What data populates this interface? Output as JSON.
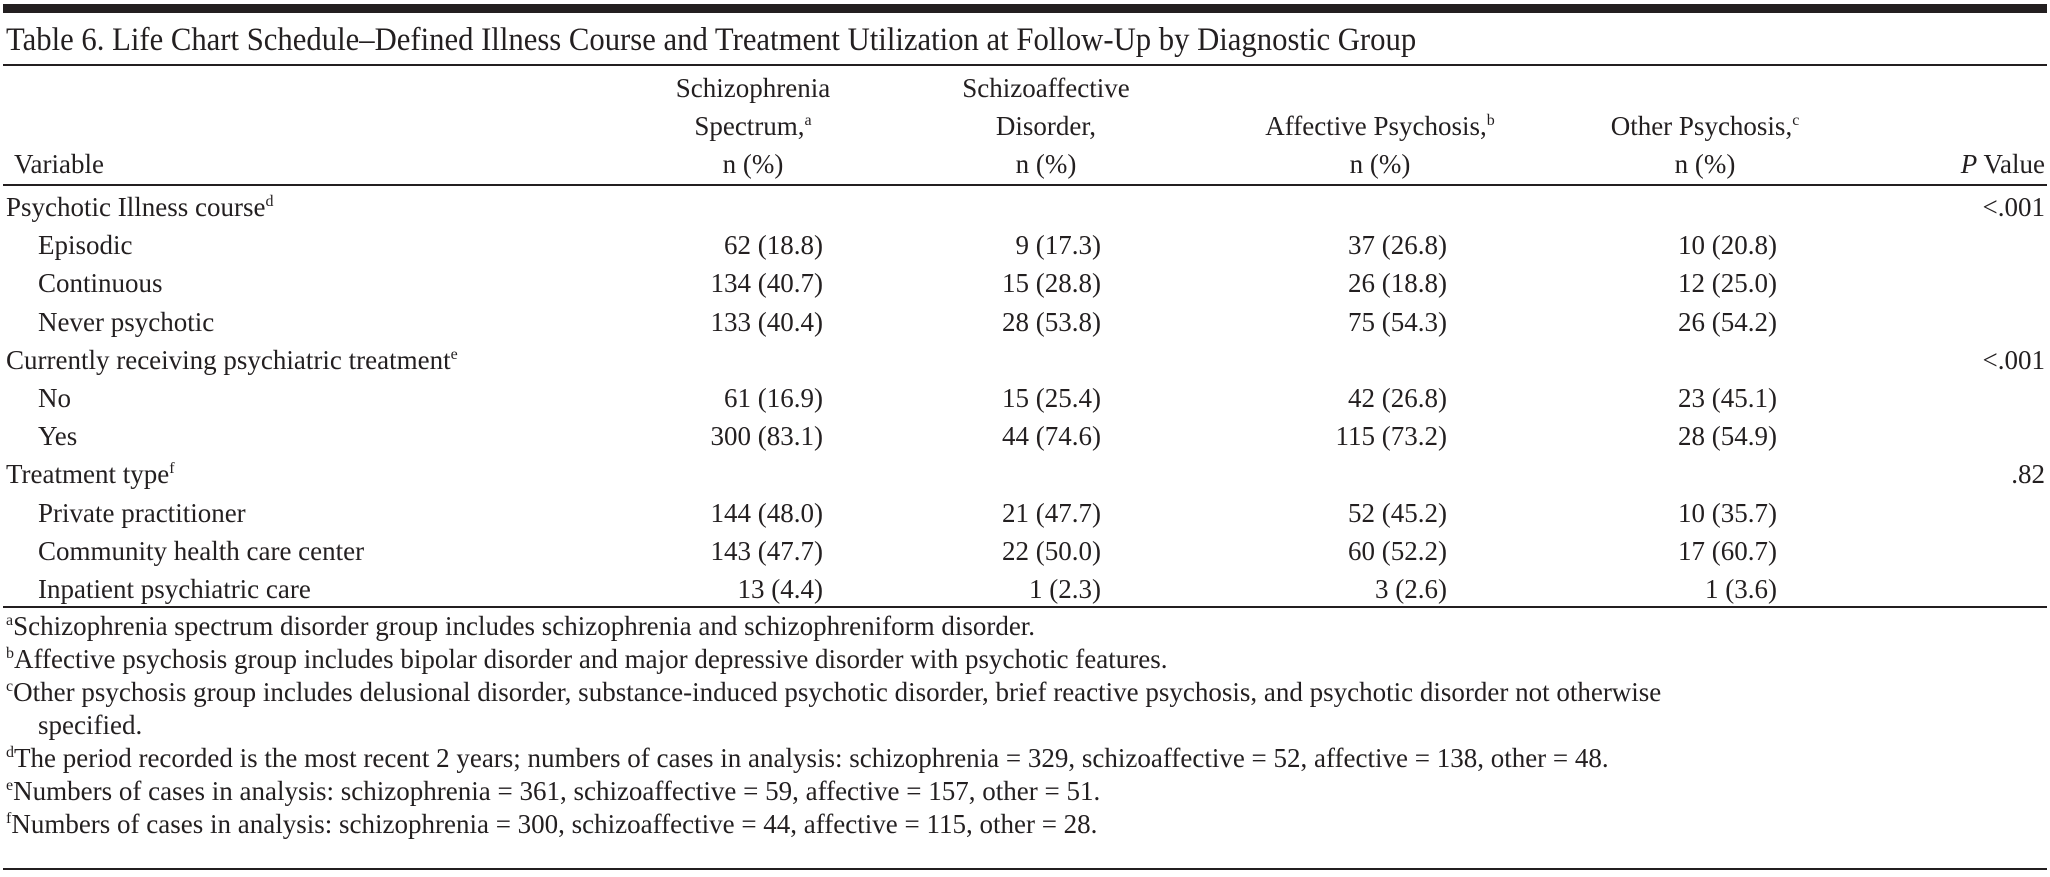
{
  "table": {
    "title": "Table 6. Life Chart Schedule–Defined Illness Course and Treatment Utilization at Follow-Up by Diagnostic Group",
    "columns": {
      "variable": "Variable",
      "schizophrenia": {
        "line1": "Schizophrenia",
        "line2": "Spectrum,",
        "sup": "a",
        "line3": "n (%)"
      },
      "schizoaffective": {
        "line1": "Schizoaffective",
        "line2": "Disorder,",
        "line3": "n (%)"
      },
      "affective": {
        "line1": "Affective Psychosis,",
        "sup": "b",
        "line2": "n (%)"
      },
      "other": {
        "line1": "Other Psychosis,",
        "sup": "c",
        "line2": "n (%)"
      },
      "pvalue": {
        "italic": "P",
        "text": " Value"
      }
    },
    "sections": [
      {
        "label": "Psychotic Illness course",
        "sup": "d",
        "p_value": "<.001",
        "rows": [
          {
            "label": "Episodic",
            "schizophrenia": "62 (18.8)",
            "schizoaffective": "9 (17.3)",
            "affective": "37 (26.8)",
            "other": "10 (20.8)"
          },
          {
            "label": "Continuous",
            "schizophrenia": "134 (40.7)",
            "schizoaffective": "15 (28.8)",
            "affective": "26 (18.8)",
            "other": "12 (25.0)"
          },
          {
            "label": "Never psychotic",
            "schizophrenia": "133 (40.4)",
            "schizoaffective": "28 (53.8)",
            "affective": "75 (54.3)",
            "other": "26 (54.2)"
          }
        ]
      },
      {
        "label": "Currently receiving psychiatric treatment",
        "sup": "e",
        "p_value": "<.001",
        "rows": [
          {
            "label": "No",
            "schizophrenia": "61 (16.9)",
            "schizoaffective": "15 (25.4)",
            "affective": "42 (26.8)",
            "other": "23 (45.1)"
          },
          {
            "label": "Yes",
            "schizophrenia": "300 (83.1)",
            "schizoaffective": "44 (74.6)",
            "affective": "115 (73.2)",
            "other": "28 (54.9)"
          }
        ]
      },
      {
        "label": "Treatment type",
        "sup": "f",
        "p_value": ".82",
        "rows": [
          {
            "label": "Private practitioner",
            "schizophrenia": "144 (48.0)",
            "schizoaffective": "21 (47.7)",
            "affective": "52 (45.2)",
            "other": "10 (35.7)"
          },
          {
            "label": "Community health care center",
            "schizophrenia": "143 (47.7)",
            "schizoaffective": "22 (50.0)",
            "affective": "60 (52.2)",
            "other": "17 (60.7)"
          },
          {
            "label": "Inpatient psychiatric care",
            "schizophrenia": "13 (4.4)",
            "schizoaffective": "1 (2.3)",
            "affective": "3 (2.6)",
            "other": "1 (3.6)"
          }
        ]
      }
    ],
    "footnotes": [
      {
        "mark": "a",
        "text": "Schizophrenia spectrum disorder group includes schizophrenia and schizophreniform disorder."
      },
      {
        "mark": "b",
        "text": "Affective psychosis group includes bipolar disorder and major depressive disorder with psychotic features."
      },
      {
        "mark": "c",
        "text": "Other psychosis group includes delusional disorder, substance-induced psychotic disorder, brief reactive psychosis, and psychotic disorder not otherwise",
        "continuation": "specified."
      },
      {
        "mark": "d",
        "text": "The period recorded is the most recent 2 years; numbers of cases in analysis: schizophrenia = 329, schizoaffective = 52, affective = 138, other = 48."
      },
      {
        "mark": "e",
        "text": "Numbers of cases in analysis: schizophrenia = 361, schizoaffective = 59, affective = 157, other = 51."
      },
      {
        "mark": "f",
        "text": "Numbers of cases in analysis: schizophrenia = 300, schizoaffective = 44, affective = 115, other = 28."
      }
    ]
  }
}
